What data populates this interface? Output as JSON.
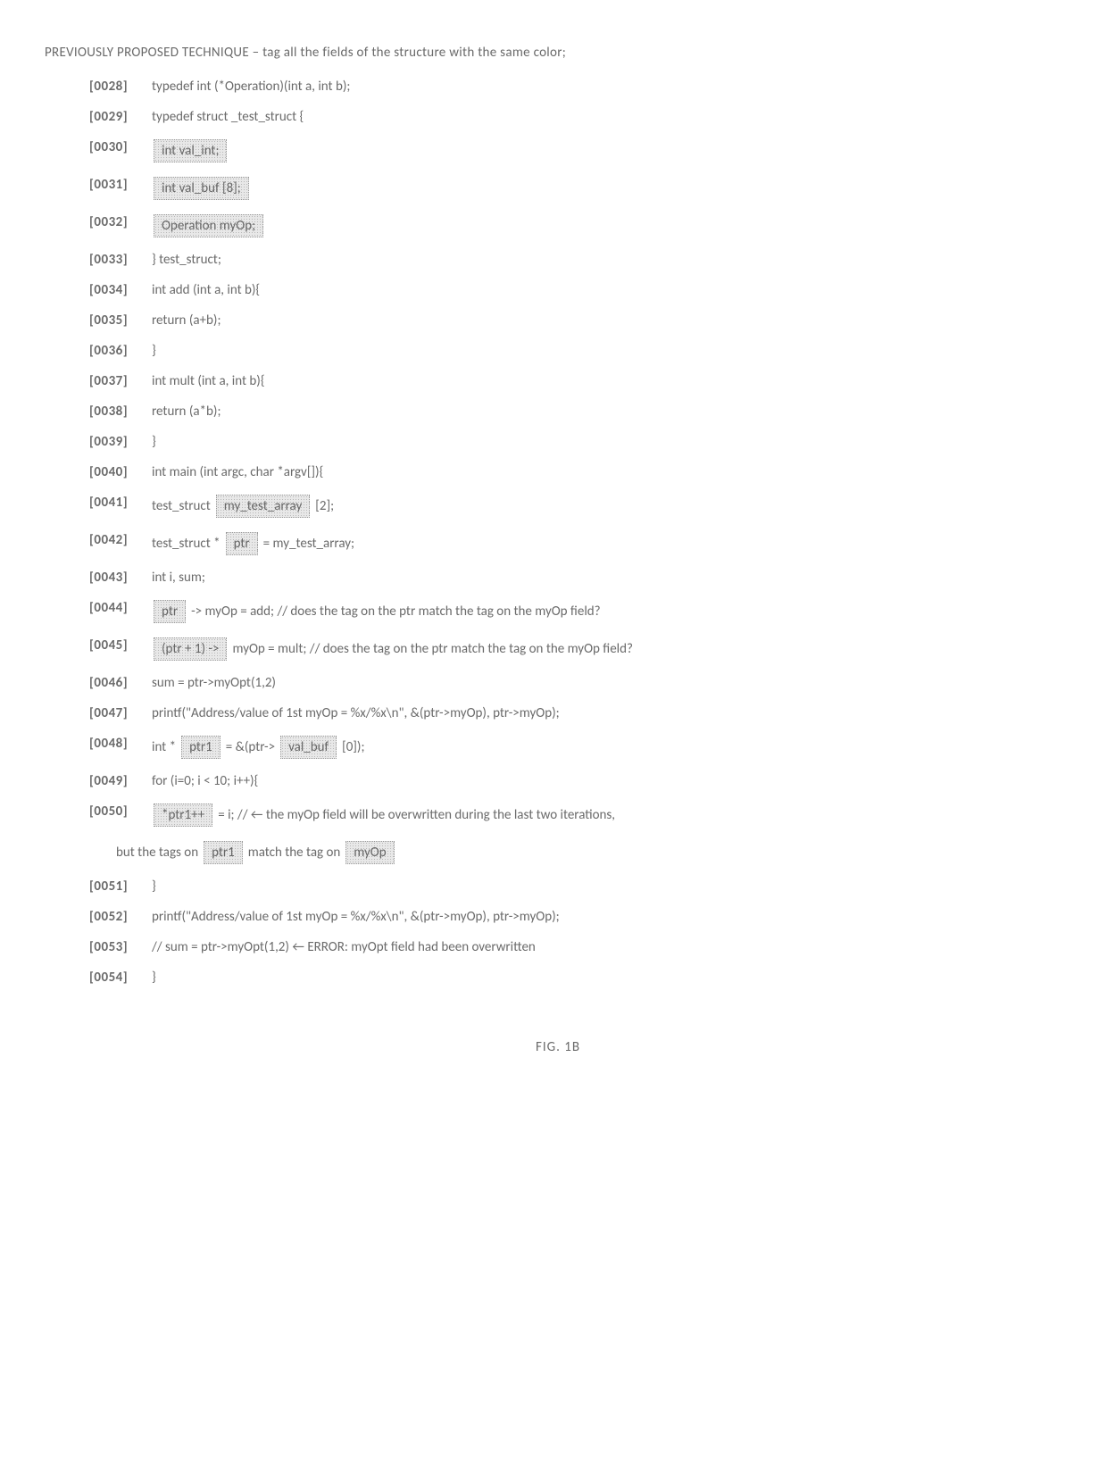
{
  "title": "PREVIOUSLY PROPOSED TECHNIQUE – tag all the fields of the structure with the same color;",
  "figure_label": "FIG. 1B",
  "colors": {
    "text": "#6a6a6a",
    "background": "#ffffff",
    "tag_border": "#999999",
    "tag_bg": "#e8e8e8",
    "tag_dot": "#b8b8b8"
  },
  "typography": {
    "font_family": "Calibri, Arial, sans-serif",
    "base_fontsize": 15,
    "paranum_weight": 600
  },
  "lines": [
    {
      "num": "[0028]",
      "segs": [
        {
          "t": "text",
          "v": "typedef int (*Operation)(int a, int b);"
        }
      ]
    },
    {
      "num": "[0029]",
      "segs": [
        {
          "t": "text",
          "v": "typedef struct _test_struct {"
        }
      ]
    },
    {
      "num": "[0030]",
      "segs": [
        {
          "t": "tag",
          "v": "int val_int;"
        }
      ]
    },
    {
      "num": "[0031]",
      "segs": [
        {
          "t": "tag",
          "v": "int val_buf [8];"
        }
      ]
    },
    {
      "num": "[0032]",
      "segs": [
        {
          "t": "tag",
          "v": "Operation myOp;"
        }
      ]
    },
    {
      "num": "[0033]",
      "segs": [
        {
          "t": "text",
          "v": "} test_struct;"
        }
      ]
    },
    {
      "num": "[0034]",
      "segs": [
        {
          "t": "text",
          "v": "int add (int a, int b){"
        }
      ]
    },
    {
      "num": "[0035]",
      "segs": [
        {
          "t": "text",
          "v": "return (a+b);"
        }
      ]
    },
    {
      "num": "[0036]",
      "segs": [
        {
          "t": "text",
          "v": "}"
        }
      ]
    },
    {
      "num": "[0037]",
      "segs": [
        {
          "t": "text",
          "v": "int mult (int a, int b){"
        }
      ]
    },
    {
      "num": "[0038]",
      "segs": [
        {
          "t": "text",
          "v": "return (a*b);"
        }
      ]
    },
    {
      "num": "[0039]",
      "segs": [
        {
          "t": "text",
          "v": "}"
        }
      ]
    },
    {
      "num": "[0040]",
      "segs": [
        {
          "t": "text",
          "v": "int main (int argc, char *argv[]){"
        }
      ]
    },
    {
      "num": "[0041]",
      "segs": [
        {
          "t": "text",
          "v": "test_struct "
        },
        {
          "t": "tag",
          "v": "my_test_array"
        },
        {
          "t": "text",
          "v": " [2];"
        }
      ]
    },
    {
      "num": "[0042]",
      "segs": [
        {
          "t": "text",
          "v": "test_struct *"
        },
        {
          "t": "tag",
          "v": "ptr"
        },
        {
          "t": "text",
          "v": " = my_test_array;"
        }
      ]
    },
    {
      "num": "[0043]",
      "segs": [
        {
          "t": "text",
          "v": "int i, sum;"
        }
      ]
    },
    {
      "num": "[0044]",
      "segs": [
        {
          "t": "tag",
          "v": "ptr"
        },
        {
          "t": "text",
          "v": " -> myOp = add; // does the tag on the ptr match the tag on the myOp field?"
        }
      ]
    },
    {
      "num": "[0045]",
      "segs": [
        {
          "t": "tag",
          "v": "(ptr + 1) ->"
        },
        {
          "t": "text",
          "v": " myOp = mult; // does the tag on the ptr match the tag on the myOp field?"
        }
      ]
    },
    {
      "num": "[0046]",
      "segs": [
        {
          "t": "text",
          "v": "sum = ptr->myOpt(1,2)"
        }
      ]
    },
    {
      "num": "[0047]",
      "segs": [
        {
          "t": "text",
          "v": "printf(\"Address/value of 1st myOp = %x/%x\\n\", &(ptr->myOp), ptr->myOp);"
        }
      ]
    },
    {
      "num": "[0048]",
      "segs": [
        {
          "t": "text",
          "v": "int *"
        },
        {
          "t": "tag",
          "v": "ptr1"
        },
        {
          "t": "text",
          "v": " = &(ptr-> "
        },
        {
          "t": "tag",
          "v": "val_buf"
        },
        {
          "t": "text",
          "v": "[0]);"
        }
      ]
    },
    {
      "num": "[0049]",
      "segs": [
        {
          "t": "text",
          "v": "for (i=0; i < 10; i++){"
        }
      ]
    },
    {
      "num": "[0050]",
      "segs": [
        {
          "t": "tag",
          "v": "*ptr1++"
        },
        {
          "t": "text",
          "v": " = i; // ← the myOp field will be overwritten during the last two iterations,"
        }
      ]
    },
    {
      "continuation": true,
      "segs": [
        {
          "t": "text",
          "v": "but the tags on "
        },
        {
          "t": "tag",
          "v": "ptr1"
        },
        {
          "t": "text",
          "v": " match the tag on "
        },
        {
          "t": "tag",
          "v": "myOp"
        }
      ]
    },
    {
      "num": "[0051]",
      "segs": [
        {
          "t": "text",
          "v": "}"
        }
      ]
    },
    {
      "num": "[0052]",
      "segs": [
        {
          "t": "text",
          "v": "printf(\"Address/value of 1st myOp = %x/%x\\n\", &(ptr->myOp), ptr->myOp);"
        }
      ]
    },
    {
      "num": "[0053]",
      "segs": [
        {
          "t": "text",
          "v": "// sum = ptr->myOpt(1,2) ← ERROR: myOpt field had been overwritten"
        }
      ]
    },
    {
      "num": "[0054]",
      "segs": [
        {
          "t": "text",
          "v": "}"
        }
      ]
    }
  ]
}
